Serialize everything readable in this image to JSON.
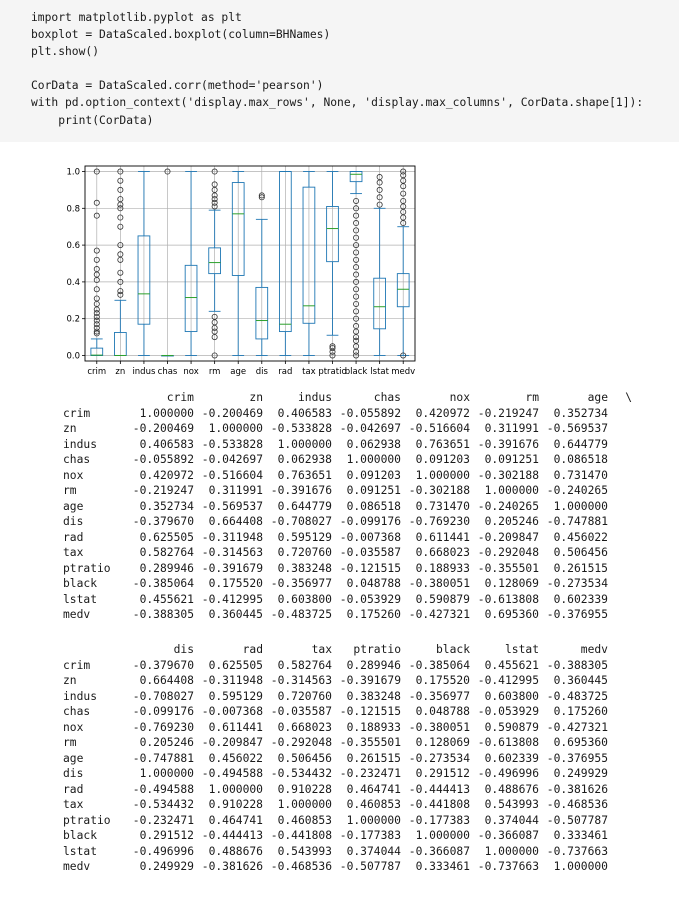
{
  "code": {
    "lines": [
      "import matplotlib.pyplot as plt",
      "boxplot = DataScaled.boxplot(column=BHNames)",
      "plt.show()",
      "",
      "CorData = DataScaled.corr(method='pearson')",
      "with pd.option_context('display.max_rows', None, 'display.max_columns', CorData.shape[1]):",
      "    print(CorData)"
    ]
  },
  "chart_data": {
    "type": "box",
    "categories": [
      "crim",
      "zn",
      "indus",
      "chas",
      "nox",
      "rm",
      "age",
      "dis",
      "rad",
      "tax",
      "ptratio",
      "black",
      "lstat",
      "medv"
    ],
    "ylim": [
      -0.03,
      1.03
    ],
    "yticks": [
      "0.0",
      "0.2",
      "0.4",
      "0.6",
      "0.8",
      "1.0"
    ],
    "grid": true,
    "boxes": [
      {
        "q1": 0.0,
        "median": 0.002,
        "q3": 0.04,
        "whislo": 0.0,
        "whishi": 0.09,
        "fliers": [
          0.12,
          0.13,
          0.15,
          0.17,
          0.19,
          0.21,
          0.23,
          0.25,
          0.28,
          0.31,
          0.36,
          0.41,
          0.44,
          0.47,
          0.52,
          0.57,
          0.76,
          0.83,
          1.0
        ]
      },
      {
        "q1": 0.0,
        "median": 0.0,
        "q3": 0.125,
        "whislo": 0.0,
        "whishi": 0.3,
        "fliers": [
          0.33,
          0.35,
          0.4,
          0.45,
          0.52,
          0.55,
          0.6,
          0.7,
          0.75,
          0.8,
          0.82,
          0.85,
          0.9,
          0.95,
          1.0
        ]
      },
      {
        "q1": 0.17,
        "median": 0.335,
        "q3": 0.65,
        "whislo": 0.0,
        "whishi": 1.0,
        "fliers": []
      },
      {
        "q1": 0.0,
        "median": 0.0,
        "q3": 0.0,
        "whislo": 0.0,
        "whishi": 0.0,
        "fliers": [
          1.0
        ]
      },
      {
        "q1": 0.13,
        "median": 0.315,
        "q3": 0.49,
        "whislo": 0.0,
        "whishi": 1.0,
        "fliers": []
      },
      {
        "q1": 0.445,
        "median": 0.505,
        "q3": 0.585,
        "whislo": 0.24,
        "whishi": 0.79,
        "fliers": [
          0.0,
          0.1,
          0.13,
          0.15,
          0.18,
          0.21,
          0.81,
          0.83,
          0.85,
          0.87,
          0.9,
          0.93,
          1.0
        ]
      },
      {
        "q1": 0.435,
        "median": 0.77,
        "q3": 0.94,
        "whislo": 0.0,
        "whishi": 1.0,
        "fliers": []
      },
      {
        "q1": 0.09,
        "median": 0.19,
        "q3": 0.37,
        "whislo": 0.0,
        "whishi": 0.74,
        "fliers": [
          0.86,
          0.87
        ]
      },
      {
        "q1": 0.13,
        "median": 0.17,
        "q3": 1.0,
        "whislo": 0.0,
        "whishi": 1.0,
        "fliers": []
      },
      {
        "q1": 0.175,
        "median": 0.27,
        "q3": 0.915,
        "whislo": 0.0,
        "whishi": 1.0,
        "fliers": []
      },
      {
        "q1": 0.51,
        "median": 0.69,
        "q3": 0.81,
        "whislo": 0.11,
        "whishi": 1.0,
        "fliers": [
          0.0,
          0.02,
          0.04,
          0.05
        ]
      },
      {
        "q1": 0.945,
        "median": 0.985,
        "q3": 1.0,
        "whislo": 0.88,
        "whishi": 1.0,
        "fliers": [
          0.0,
          0.02,
          0.05,
          0.08,
          0.1,
          0.13,
          0.16,
          0.2,
          0.24,
          0.28,
          0.32,
          0.36,
          0.4,
          0.44,
          0.48,
          0.52,
          0.56,
          0.6,
          0.64,
          0.68,
          0.72,
          0.76,
          0.8,
          0.84
        ]
      },
      {
        "q1": 0.145,
        "median": 0.265,
        "q3": 0.42,
        "whislo": 0.0,
        "whishi": 0.8,
        "fliers": [
          0.82,
          0.86,
          0.9,
          0.94,
          0.97
        ]
      },
      {
        "q1": 0.265,
        "median": 0.36,
        "q3": 0.445,
        "whislo": 0.0,
        "whishi": 0.7,
        "fliers": [
          0.0,
          0.72,
          0.75,
          0.78,
          0.81,
          0.84,
          0.88,
          0.92,
          0.95,
          0.98,
          1.0
        ]
      }
    ]
  },
  "table1": {
    "columns": [
      "crim",
      "zn",
      "indus",
      "chas",
      "nox",
      "rm",
      "age"
    ],
    "continuation": "\\",
    "rows": [
      {
        "label": "crim",
        "values": [
          "1.000000",
          "-0.200469",
          "0.406583",
          "-0.055892",
          "0.420972",
          "-0.219247",
          "0.352734"
        ]
      },
      {
        "label": "zn",
        "values": [
          "-0.200469",
          "1.000000",
          "-0.533828",
          "-0.042697",
          "-0.516604",
          "0.311991",
          "-0.569537"
        ]
      },
      {
        "label": "indus",
        "values": [
          "0.406583",
          "-0.533828",
          "1.000000",
          "0.062938",
          "0.763651",
          "-0.391676",
          "0.644779"
        ]
      },
      {
        "label": "chas",
        "values": [
          "-0.055892",
          "-0.042697",
          "0.062938",
          "1.000000",
          "0.091203",
          "0.091251",
          "0.086518"
        ]
      },
      {
        "label": "nox",
        "values": [
          "0.420972",
          "-0.516604",
          "0.763651",
          "0.091203",
          "1.000000",
          "-0.302188",
          "0.731470"
        ]
      },
      {
        "label": "rm",
        "values": [
          "-0.219247",
          "0.311991",
          "-0.391676",
          "0.091251",
          "-0.302188",
          "1.000000",
          "-0.240265"
        ]
      },
      {
        "label": "age",
        "values": [
          "0.352734",
          "-0.569537",
          "0.644779",
          "0.086518",
          "0.731470",
          "-0.240265",
          "1.000000"
        ]
      },
      {
        "label": "dis",
        "values": [
          "-0.379670",
          "0.664408",
          "-0.708027",
          "-0.099176",
          "-0.769230",
          "0.205246",
          "-0.747881"
        ]
      },
      {
        "label": "rad",
        "values": [
          "0.625505",
          "-0.311948",
          "0.595129",
          "-0.007368",
          "0.611441",
          "-0.209847",
          "0.456022"
        ]
      },
      {
        "label": "tax",
        "values": [
          "0.582764",
          "-0.314563",
          "0.720760",
          "-0.035587",
          "0.668023",
          "-0.292048",
          "0.506456"
        ]
      },
      {
        "label": "ptratio",
        "values": [
          "0.289946",
          "-0.391679",
          "0.383248",
          "-0.121515",
          "0.188933",
          "-0.355501",
          "0.261515"
        ]
      },
      {
        "label": "black",
        "values": [
          "-0.385064",
          "0.175520",
          "-0.356977",
          "0.048788",
          "-0.380051",
          "0.128069",
          "-0.273534"
        ]
      },
      {
        "label": "lstat",
        "values": [
          "0.455621",
          "-0.412995",
          "0.603800",
          "-0.053929",
          "0.590879",
          "-0.613808",
          "0.602339"
        ]
      },
      {
        "label": "medv",
        "values": [
          "-0.388305",
          "0.360445",
          "-0.483725",
          "0.175260",
          "-0.427321",
          "0.695360",
          "-0.376955"
        ]
      }
    ]
  },
  "table2": {
    "columns": [
      "dis",
      "rad",
      "tax",
      "ptratio",
      "black",
      "lstat",
      "medv"
    ],
    "rows": [
      {
        "label": "crim",
        "values": [
          "-0.379670",
          "0.625505",
          "0.582764",
          "0.289946",
          "-0.385064",
          "0.455621",
          "-0.388305"
        ]
      },
      {
        "label": "zn",
        "values": [
          "0.664408",
          "-0.311948",
          "-0.314563",
          "-0.391679",
          "0.175520",
          "-0.412995",
          "0.360445"
        ]
      },
      {
        "label": "indus",
        "values": [
          "-0.708027",
          "0.595129",
          "0.720760",
          "0.383248",
          "-0.356977",
          "0.603800",
          "-0.483725"
        ]
      },
      {
        "label": "chas",
        "values": [
          "-0.099176",
          "-0.007368",
          "-0.035587",
          "-0.121515",
          "0.048788",
          "-0.053929",
          "0.175260"
        ]
      },
      {
        "label": "nox",
        "values": [
          "-0.769230",
          "0.611441",
          "0.668023",
          "0.188933",
          "-0.380051",
          "0.590879",
          "-0.427321"
        ]
      },
      {
        "label": "rm",
        "values": [
          "0.205246",
          "-0.209847",
          "-0.292048",
          "-0.355501",
          "0.128069",
          "-0.613808",
          "0.695360"
        ]
      },
      {
        "label": "age",
        "values": [
          "-0.747881",
          "0.456022",
          "0.506456",
          "0.261515",
          "-0.273534",
          "0.602339",
          "-0.376955"
        ]
      },
      {
        "label": "dis",
        "values": [
          "1.000000",
          "-0.494588",
          "-0.534432",
          "-0.232471",
          "0.291512",
          "-0.496996",
          "0.249929"
        ]
      },
      {
        "label": "rad",
        "values": [
          "-0.494588",
          "1.000000",
          "0.910228",
          "0.464741",
          "-0.444413",
          "0.488676",
          "-0.381626"
        ]
      },
      {
        "label": "tax",
        "values": [
          "-0.534432",
          "0.910228",
          "1.000000",
          "0.460853",
          "-0.441808",
          "0.543993",
          "-0.468536"
        ]
      },
      {
        "label": "ptratio",
        "values": [
          "-0.232471",
          "0.464741",
          "0.460853",
          "1.000000",
          "-0.177383",
          "0.374044",
          "-0.507787"
        ]
      },
      {
        "label": "black",
        "values": [
          "0.291512",
          "-0.444413",
          "-0.441808",
          "-0.177383",
          "1.000000",
          "-0.366087",
          "0.333461"
        ]
      },
      {
        "label": "lstat",
        "values": [
          "-0.496996",
          "0.488676",
          "0.543993",
          "0.374044",
          "-0.366087",
          "1.000000",
          "-0.737663"
        ]
      },
      {
        "label": "medv",
        "values": [
          "0.249929",
          "-0.381626",
          "-0.468536",
          "-0.507787",
          "0.333461",
          "-0.737663",
          "1.000000"
        ]
      }
    ]
  },
  "colors": {
    "box": "#1f77b4",
    "median": "#2ca02c",
    "text": "#1a1a1a",
    "code_bg": "#f5f5f5",
    "grid": "#b0b0b0"
  }
}
